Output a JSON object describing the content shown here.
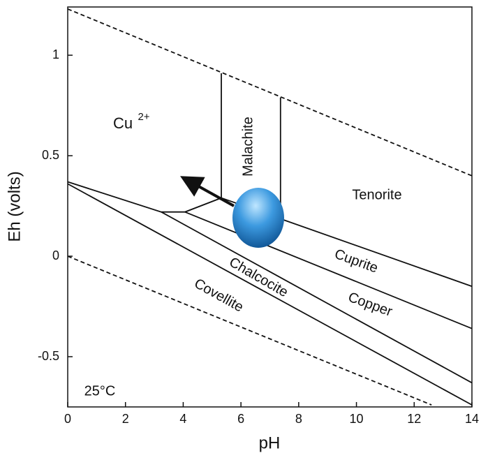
{
  "chart_data": {
    "type": "line",
    "x_label": "pH",
    "y_label": "Eh (volts)",
    "xlim": [
      0,
      14
    ],
    "ylim": [
      -0.75,
      1.24
    ],
    "xticks": [
      0,
      2,
      4,
      6,
      8,
      10,
      12,
      14
    ],
    "yticks": [
      -0.5,
      0,
      0.5,
      1
    ],
    "color": "#111111",
    "series": [
      {
        "x": [
          0,
          14
        ],
        "values": [
          1.23,
          0.4
        ],
        "dashed": true
      },
      {
        "x": [
          0,
          12.6
        ],
        "values": [
          0,
          -0.74
        ],
        "dashed": true
      },
      {
        "x": [
          0,
          3.24,
          4.06,
          5.32
        ],
        "values": [
          0.37,
          0.22,
          0.22,
          0.29
        ],
        "dashed": false
      },
      {
        "x": [
          5.32,
          5.32
        ],
        "values": [
          0.91,
          0.29
        ],
        "dashed": false
      },
      {
        "x": [
          7.37,
          7.37
        ],
        "values": [
          0.79,
          0.24
        ],
        "dashed": false
      },
      {
        "x": [
          4.06,
          5.32,
          14
        ],
        "values": [
          0.22,
          0.29,
          -0.15
        ],
        "dashed": false
      },
      {
        "x": [
          4.06,
          14
        ],
        "values": [
          0.22,
          -0.36
        ],
        "dashed": false
      },
      {
        "x": [
          3.24,
          14
        ],
        "values": [
          0.22,
          -0.63
        ],
        "dashed": false
      },
      {
        "x": [
          0,
          14
        ],
        "values": [
          0.36,
          -0.74
        ],
        "dashed": false
      }
    ],
    "annotations": [
      "Cu",
      "2+",
      "Malachite",
      "Tenorite",
      "Cuprite",
      "Copper",
      "Chalcocite",
      "Covellite",
      "25°C"
    ]
  }
}
